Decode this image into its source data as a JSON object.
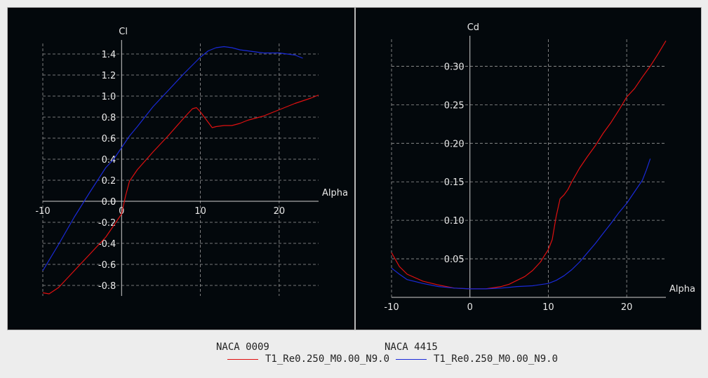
{
  "chart_data": [
    {
      "type": "line",
      "xlabel": "Alpha",
      "ylabel": "Cl",
      "xlim": [
        -10,
        25
      ],
      "ylim": [
        -0.9,
        1.5
      ],
      "xticks": [
        -10,
        0,
        10,
        20
      ],
      "yticks": [
        -0.8,
        -0.6,
        -0.4,
        -0.2,
        0,
        0.2,
        0.4,
        0.6,
        0.8,
        1.0,
        1.2,
        1.4
      ],
      "ytick_decimals": 1,
      "grid": true,
      "series": [
        {
          "name": "NACA 0009 T1_Re0.250_M0.00_N9.0",
          "color": "#e01010",
          "x": [
            -10,
            -9.2,
            -8,
            -6,
            -4,
            -2,
            -1,
            0,
            0.5,
            1,
            2,
            4,
            6,
            8,
            9,
            9.5,
            10,
            11,
            11.5,
            12,
            13,
            14,
            15,
            16,
            17,
            18,
            20,
            22,
            24,
            25
          ],
          "y": [
            -0.87,
            -0.88,
            -0.82,
            -0.66,
            -0.5,
            -0.34,
            -0.23,
            -0.12,
            0.05,
            0.19,
            0.3,
            0.47,
            0.63,
            0.8,
            0.88,
            0.89,
            0.85,
            0.75,
            0.7,
            0.71,
            0.72,
            0.72,
            0.74,
            0.77,
            0.79,
            0.81,
            0.87,
            0.93,
            0.98,
            1.01
          ]
        },
        {
          "name": "NACA 4415 T1_Re0.250_M0.00_N9.0",
          "color": "#1a2ad8",
          "x": [
            -10,
            -8,
            -6,
            -4,
            -2,
            -1,
            0,
            1,
            2,
            4,
            6,
            8,
            10,
            11,
            12,
            13,
            14,
            15,
            16,
            18,
            20,
            22,
            23
          ],
          "y": [
            -0.66,
            -0.41,
            -0.15,
            0.09,
            0.32,
            0.4,
            0.51,
            0.62,
            0.71,
            0.9,
            1.06,
            1.22,
            1.37,
            1.43,
            1.46,
            1.47,
            1.46,
            1.44,
            1.43,
            1.41,
            1.41,
            1.39,
            1.36
          ]
        }
      ]
    },
    {
      "type": "line",
      "xlabel": "Alpha",
      "ylabel": "Cd",
      "xlim": [
        -10,
        25
      ],
      "ylim": [
        0,
        0.335
      ],
      "xticks": [
        -10,
        0,
        10,
        20
      ],
      "yticks": [
        0.05,
        0.1,
        0.15,
        0.2,
        0.25,
        0.3
      ],
      "ytick_decimals": 2,
      "grid": true,
      "series": [
        {
          "name": "NACA 0009 T1_Re0.250_M0.00_N9.0",
          "color": "#e01010",
          "x": [
            -10,
            -9,
            -8,
            -6,
            -4,
            -2,
            0,
            2,
            4,
            5,
            6,
            7,
            8,
            9,
            9.5,
            10,
            10.5,
            11,
            11.5,
            12,
            12.5,
            13,
            14,
            15,
            16,
            17,
            18,
            19,
            20,
            21,
            22,
            23,
            24,
            25
          ],
          "y": [
            0.058,
            0.04,
            0.03,
            0.021,
            0.016,
            0.012,
            0.011,
            0.011,
            0.014,
            0.017,
            0.022,
            0.027,
            0.035,
            0.046,
            0.054,
            0.062,
            0.075,
            0.105,
            0.128,
            0.133,
            0.14,
            0.15,
            0.168,
            0.183,
            0.197,
            0.213,
            0.227,
            0.243,
            0.26,
            0.271,
            0.286,
            0.3,
            0.316,
            0.333
          ]
        },
        {
          "name": "NACA 4415 T1_Re0.250_M0.00_N9.0",
          "color": "#1a2ad8",
          "x": [
            -10,
            -9,
            -8,
            -6,
            -4,
            -2,
            0,
            2,
            4,
            6,
            8,
            10,
            11,
            12,
            13,
            14,
            15,
            16,
            17,
            18,
            19,
            20,
            21,
            22,
            22.5,
            23
          ],
          "y": [
            0.038,
            0.03,
            0.023,
            0.018,
            0.014,
            0.012,
            0.011,
            0.011,
            0.012,
            0.014,
            0.015,
            0.018,
            0.022,
            0.028,
            0.036,
            0.046,
            0.058,
            0.07,
            0.083,
            0.096,
            0.11,
            0.122,
            0.137,
            0.152,
            0.165,
            0.18
          ]
        }
      ]
    }
  ],
  "legend": {
    "foils": [
      "NACA 0009",
      "NACA 4415"
    ],
    "polars": [
      "T1_Re0.250_M0.00_N9.0",
      "T1_Re0.250_M0.00_N9.0"
    ],
    "colors": [
      "#e01010",
      "#1a2ad8"
    ]
  }
}
